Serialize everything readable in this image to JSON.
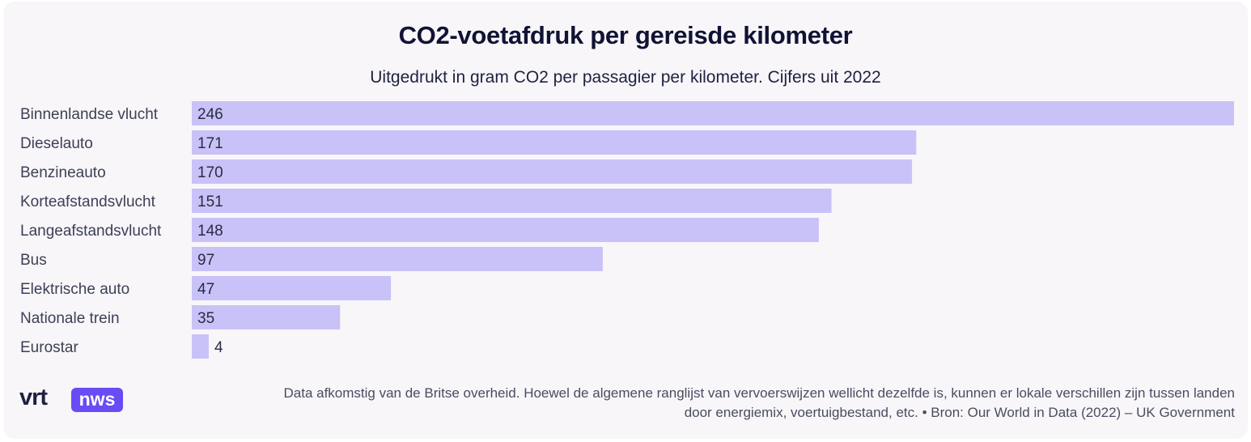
{
  "title": "CO2-voetafdruk per gereisde kilometer",
  "subtitle": "Uitgedrukt in gram CO2 per passagier per kilometer. Cijfers uit 2022",
  "chart_data": {
    "type": "bar",
    "orientation": "horizontal",
    "title": "CO2-voetafdruk per gereisde kilometer",
    "subtitle": "Uitgedrukt in gram CO2 per passagier per kilometer. Cijfers uit 2022",
    "categories": [
      "Binnenlandse vlucht",
      "Dieselauto",
      "Benzineauto",
      "Korteafstandsvlucht",
      "Langeafstandsvlucht",
      "Bus",
      "Elektrische auto",
      "Nationale trein",
      "Eurostar"
    ],
    "values": [
      246,
      171,
      170,
      151,
      148,
      97,
      47,
      35,
      4
    ],
    "xlabel": "",
    "ylabel": "",
    "xlim": [
      0,
      246
    ],
    "grid": false,
    "legend": "none",
    "bar_color": "#c9c2f8"
  },
  "footnote": {
    "line1": "Data afkomstig van de Britse overheid. Hoewel de algemene ranglijst van vervoerswijzen wellicht dezelfde is, kunnen er lokale verschillen zijn tussen landen",
    "line2": "door energiemix, voertuigbestand, etc. • Bron: Our World in Data (2022) – UK Government"
  },
  "logo": {
    "vrt": "vrt",
    "nws": "nws",
    "color": "#6b4bf5"
  }
}
